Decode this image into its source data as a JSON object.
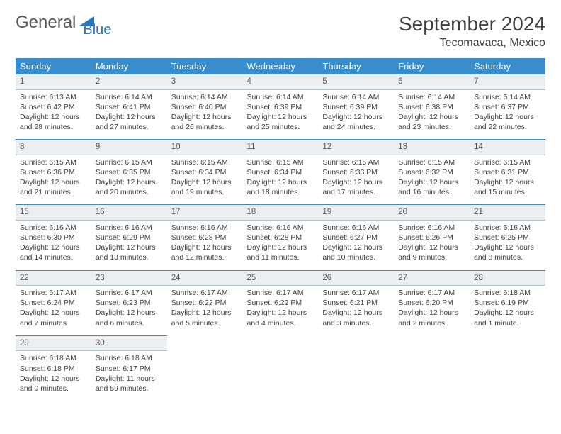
{
  "brand": {
    "part1": "General",
    "part2": "Blue"
  },
  "title": "September 2024",
  "location": "Tecomavaca, Mexico",
  "colors": {
    "header_bg": "#3a8dcc",
    "header_text": "#ffffff",
    "daynum_bg": "#eceff1",
    "daynum_border": "#b0bec5",
    "week_top_border": "#3a8dcc",
    "text": "#404040",
    "brand_gray": "#595959",
    "brand_blue": "#2e75b6"
  },
  "day_headers": [
    "Sunday",
    "Monday",
    "Tuesday",
    "Wednesday",
    "Thursday",
    "Friday",
    "Saturday"
  ],
  "weeks": [
    [
      {
        "n": "1",
        "sr": "Sunrise: 6:13 AM",
        "ss": "Sunset: 6:42 PM",
        "dl1": "Daylight: 12 hours",
        "dl2": "and 28 minutes."
      },
      {
        "n": "2",
        "sr": "Sunrise: 6:14 AM",
        "ss": "Sunset: 6:41 PM",
        "dl1": "Daylight: 12 hours",
        "dl2": "and 27 minutes."
      },
      {
        "n": "3",
        "sr": "Sunrise: 6:14 AM",
        "ss": "Sunset: 6:40 PM",
        "dl1": "Daylight: 12 hours",
        "dl2": "and 26 minutes."
      },
      {
        "n": "4",
        "sr": "Sunrise: 6:14 AM",
        "ss": "Sunset: 6:39 PM",
        "dl1": "Daylight: 12 hours",
        "dl2": "and 25 minutes."
      },
      {
        "n": "5",
        "sr": "Sunrise: 6:14 AM",
        "ss": "Sunset: 6:39 PM",
        "dl1": "Daylight: 12 hours",
        "dl2": "and 24 minutes."
      },
      {
        "n": "6",
        "sr": "Sunrise: 6:14 AM",
        "ss": "Sunset: 6:38 PM",
        "dl1": "Daylight: 12 hours",
        "dl2": "and 23 minutes."
      },
      {
        "n": "7",
        "sr": "Sunrise: 6:14 AM",
        "ss": "Sunset: 6:37 PM",
        "dl1": "Daylight: 12 hours",
        "dl2": "and 22 minutes."
      }
    ],
    [
      {
        "n": "8",
        "sr": "Sunrise: 6:15 AM",
        "ss": "Sunset: 6:36 PM",
        "dl1": "Daylight: 12 hours",
        "dl2": "and 21 minutes."
      },
      {
        "n": "9",
        "sr": "Sunrise: 6:15 AM",
        "ss": "Sunset: 6:35 PM",
        "dl1": "Daylight: 12 hours",
        "dl2": "and 20 minutes."
      },
      {
        "n": "10",
        "sr": "Sunrise: 6:15 AM",
        "ss": "Sunset: 6:34 PM",
        "dl1": "Daylight: 12 hours",
        "dl2": "and 19 minutes."
      },
      {
        "n": "11",
        "sr": "Sunrise: 6:15 AM",
        "ss": "Sunset: 6:34 PM",
        "dl1": "Daylight: 12 hours",
        "dl2": "and 18 minutes."
      },
      {
        "n": "12",
        "sr": "Sunrise: 6:15 AM",
        "ss": "Sunset: 6:33 PM",
        "dl1": "Daylight: 12 hours",
        "dl2": "and 17 minutes."
      },
      {
        "n": "13",
        "sr": "Sunrise: 6:15 AM",
        "ss": "Sunset: 6:32 PM",
        "dl1": "Daylight: 12 hours",
        "dl2": "and 16 minutes."
      },
      {
        "n": "14",
        "sr": "Sunrise: 6:15 AM",
        "ss": "Sunset: 6:31 PM",
        "dl1": "Daylight: 12 hours",
        "dl2": "and 15 minutes."
      }
    ],
    [
      {
        "n": "15",
        "sr": "Sunrise: 6:16 AM",
        "ss": "Sunset: 6:30 PM",
        "dl1": "Daylight: 12 hours",
        "dl2": "and 14 minutes."
      },
      {
        "n": "16",
        "sr": "Sunrise: 6:16 AM",
        "ss": "Sunset: 6:29 PM",
        "dl1": "Daylight: 12 hours",
        "dl2": "and 13 minutes."
      },
      {
        "n": "17",
        "sr": "Sunrise: 6:16 AM",
        "ss": "Sunset: 6:28 PM",
        "dl1": "Daylight: 12 hours",
        "dl2": "and 12 minutes."
      },
      {
        "n": "18",
        "sr": "Sunrise: 6:16 AM",
        "ss": "Sunset: 6:28 PM",
        "dl1": "Daylight: 12 hours",
        "dl2": "and 11 minutes."
      },
      {
        "n": "19",
        "sr": "Sunrise: 6:16 AM",
        "ss": "Sunset: 6:27 PM",
        "dl1": "Daylight: 12 hours",
        "dl2": "and 10 minutes."
      },
      {
        "n": "20",
        "sr": "Sunrise: 6:16 AM",
        "ss": "Sunset: 6:26 PM",
        "dl1": "Daylight: 12 hours",
        "dl2": "and 9 minutes."
      },
      {
        "n": "21",
        "sr": "Sunrise: 6:16 AM",
        "ss": "Sunset: 6:25 PM",
        "dl1": "Daylight: 12 hours",
        "dl2": "and 8 minutes."
      }
    ],
    [
      {
        "n": "22",
        "sr": "Sunrise: 6:17 AM",
        "ss": "Sunset: 6:24 PM",
        "dl1": "Daylight: 12 hours",
        "dl2": "and 7 minutes."
      },
      {
        "n": "23",
        "sr": "Sunrise: 6:17 AM",
        "ss": "Sunset: 6:23 PM",
        "dl1": "Daylight: 12 hours",
        "dl2": "and 6 minutes."
      },
      {
        "n": "24",
        "sr": "Sunrise: 6:17 AM",
        "ss": "Sunset: 6:22 PM",
        "dl1": "Daylight: 12 hours",
        "dl2": "and 5 minutes."
      },
      {
        "n": "25",
        "sr": "Sunrise: 6:17 AM",
        "ss": "Sunset: 6:22 PM",
        "dl1": "Daylight: 12 hours",
        "dl2": "and 4 minutes."
      },
      {
        "n": "26",
        "sr": "Sunrise: 6:17 AM",
        "ss": "Sunset: 6:21 PM",
        "dl1": "Daylight: 12 hours",
        "dl2": "and 3 minutes."
      },
      {
        "n": "27",
        "sr": "Sunrise: 6:17 AM",
        "ss": "Sunset: 6:20 PM",
        "dl1": "Daylight: 12 hours",
        "dl2": "and 2 minutes."
      },
      {
        "n": "28",
        "sr": "Sunrise: 6:18 AM",
        "ss": "Sunset: 6:19 PM",
        "dl1": "Daylight: 12 hours",
        "dl2": "and 1 minute."
      }
    ],
    [
      {
        "n": "29",
        "sr": "Sunrise: 6:18 AM",
        "ss": "Sunset: 6:18 PM",
        "dl1": "Daylight: 12 hours",
        "dl2": "and 0 minutes."
      },
      {
        "n": "30",
        "sr": "Sunrise: 6:18 AM",
        "ss": "Sunset: 6:17 PM",
        "dl1": "Daylight: 11 hours",
        "dl2": "and 59 minutes."
      },
      null,
      null,
      null,
      null,
      null
    ]
  ]
}
